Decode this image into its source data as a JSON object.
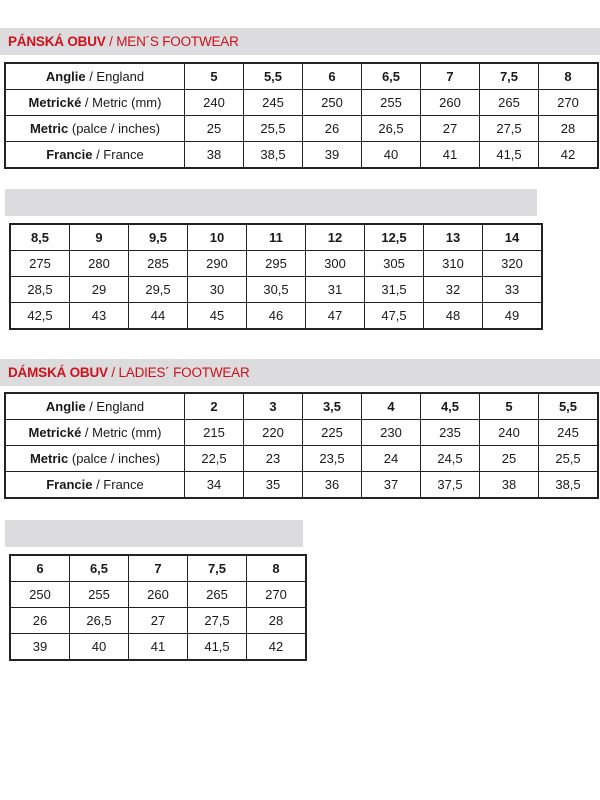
{
  "mens": {
    "title_bold": "PÁNSKÁ OBUV",
    "title_rest": " / MEN´S FOOTWEAR",
    "labels": [
      {
        "bold": "Anglie",
        "rest": " / England"
      },
      {
        "bold": "Metrické",
        "rest": " / Metric (mm)"
      },
      {
        "bold": "Metric",
        "rest": " (palce / inches)"
      },
      {
        "bold": "Francie",
        "rest": " / France"
      }
    ],
    "part1": [
      [
        "5",
        "5,5",
        "6",
        "6,5",
        "7",
        "7,5",
        "8"
      ],
      [
        "240",
        "245",
        "250",
        "255",
        "260",
        "265",
        "270"
      ],
      [
        "25",
        "25,5",
        "26",
        "26,5",
        "27",
        "27,5",
        "28"
      ],
      [
        "38",
        "38,5",
        "39",
        "40",
        "41",
        "41,5",
        "42"
      ]
    ],
    "part2": [
      [
        "8,5",
        "9",
        "9,5",
        "10",
        "11",
        "12",
        "12,5",
        "13",
        "14"
      ],
      [
        "275",
        "280",
        "285",
        "290",
        "295",
        "300",
        "305",
        "310",
        "320"
      ],
      [
        "28,5",
        "29",
        "29,5",
        "30",
        "30,5",
        "31",
        "31,5",
        "32",
        "33"
      ],
      [
        "42,5",
        "43",
        "44",
        "45",
        "46",
        "47",
        "47,5",
        "48",
        "49"
      ]
    ]
  },
  "ladies": {
    "title_bold": "DÁMSKÁ OBUV",
    "title_rest": " / LADIES´ FOOTWEAR",
    "labels": [
      {
        "bold": "Anglie",
        "rest": " / England"
      },
      {
        "bold": "Metrické",
        "rest": " / Metric (mm)"
      },
      {
        "bold": "Metric",
        "rest": " (palce / inches)"
      },
      {
        "bold": "Francie",
        "rest": " / France"
      }
    ],
    "part1": [
      [
        "2",
        "3",
        "3,5",
        "4",
        "4,5",
        "5",
        "5,5"
      ],
      [
        "215",
        "220",
        "225",
        "230",
        "235",
        "240",
        "245"
      ],
      [
        "22,5",
        "23",
        "23,5",
        "24",
        "24,5",
        "25",
        "25,5"
      ],
      [
        "34",
        "35",
        "36",
        "37",
        "37,5",
        "38",
        "38,5"
      ]
    ],
    "part2": [
      [
        "6",
        "6,5",
        "7",
        "7,5",
        "8"
      ],
      [
        "250",
        "255",
        "260",
        "265",
        "270"
      ],
      [
        "26",
        "26,5",
        "27",
        "27,5",
        "28"
      ],
      [
        "39",
        "40",
        "41",
        "41,5",
        "42"
      ]
    ]
  },
  "colors": {
    "accent": "#d0101b",
    "bar": "#dcdcde"
  }
}
